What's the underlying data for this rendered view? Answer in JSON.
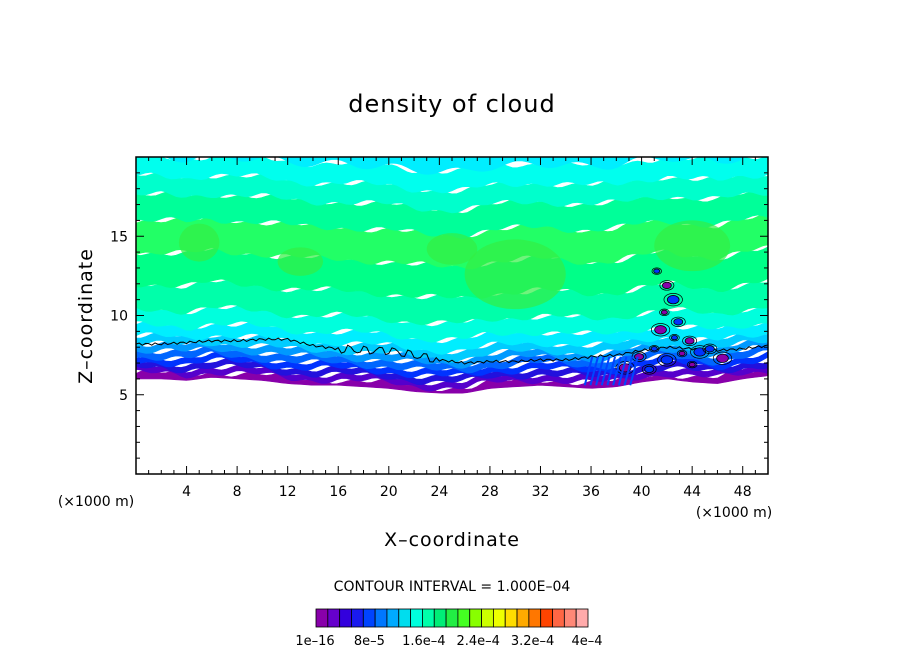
{
  "chart_data": {
    "type": "heatmap",
    "title": "density of cloud",
    "xlabel": "X–coordinate",
    "ylabel": "Z–coordinate",
    "x_unit_left": "(×1000 m)",
    "x_unit_right": "(×1000 m)",
    "xlim": [
      0,
      50
    ],
    "ylim": [
      0,
      20
    ],
    "x_ticks": [
      4,
      8,
      12,
      16,
      20,
      24,
      28,
      32,
      36,
      40,
      44,
      48
    ],
    "x_tick_labels": [
      "4",
      "8",
      "12",
      "16",
      "20",
      "24",
      "28",
      "32",
      "36",
      "40",
      "44",
      "48"
    ],
    "y_ticks": [
      5,
      10,
      15
    ],
    "y_tick_labels": [
      "5",
      "10",
      "15"
    ],
    "contour_interval_text": "CONTOUR INTERVAL = 1.000E–04",
    "colorbar": {
      "labels": [
        "1e–16",
        "8e–5",
        "1.6e–4",
        "2.4e–4",
        "3.2e–4",
        "4e–4"
      ],
      "colors": [
        "#8800aa",
        "#6600cc",
        "#3300dd",
        "#1a1aee",
        "#0044ff",
        "#0077ff",
        "#00aaff",
        "#00ddee",
        "#00ffdd",
        "#00ffaa",
        "#00ee77",
        "#22ee44",
        "#44ff22",
        "#88ff00",
        "#ccff00",
        "#eeff00",
        "#ffdd00",
        "#ffaa00",
        "#ff7700",
        "#ff4400",
        "#ff6644",
        "#ff8877",
        "#ffaaaa"
      ]
    },
    "field_profile": {
      "columns_x": [
        0,
        2,
        4,
        6,
        8,
        10,
        12,
        14,
        16,
        18,
        20,
        22,
        24,
        26,
        28,
        30,
        32,
        34,
        36,
        38,
        40,
        42,
        44,
        46,
        48,
        50
      ],
      "cloud_base_z": [
        6.0,
        6.0,
        5.9,
        6.1,
        6.0,
        5.9,
        5.7,
        5.6,
        5.6,
        5.5,
        5.4,
        5.2,
        5.1,
        5.1,
        5.4,
        5.5,
        5.6,
        5.5,
        5.4,
        5.5,
        5.8,
        6.0,
        5.8,
        5.7,
        6.0,
        6.2
      ],
      "contour_line_z": [
        8.2,
        8.2,
        8.3,
        8.4,
        8.4,
        8.5,
        8.5,
        8.1,
        7.9,
        7.8,
        7.8,
        7.5,
        7.2,
        7.0,
        7.1,
        7.1,
        7.2,
        7.2,
        7.4,
        7.5,
        7.8,
        8.0,
        7.9,
        7.8,
        7.9,
        8.1
      ],
      "cloud_top_z": 19.7
    }
  }
}
